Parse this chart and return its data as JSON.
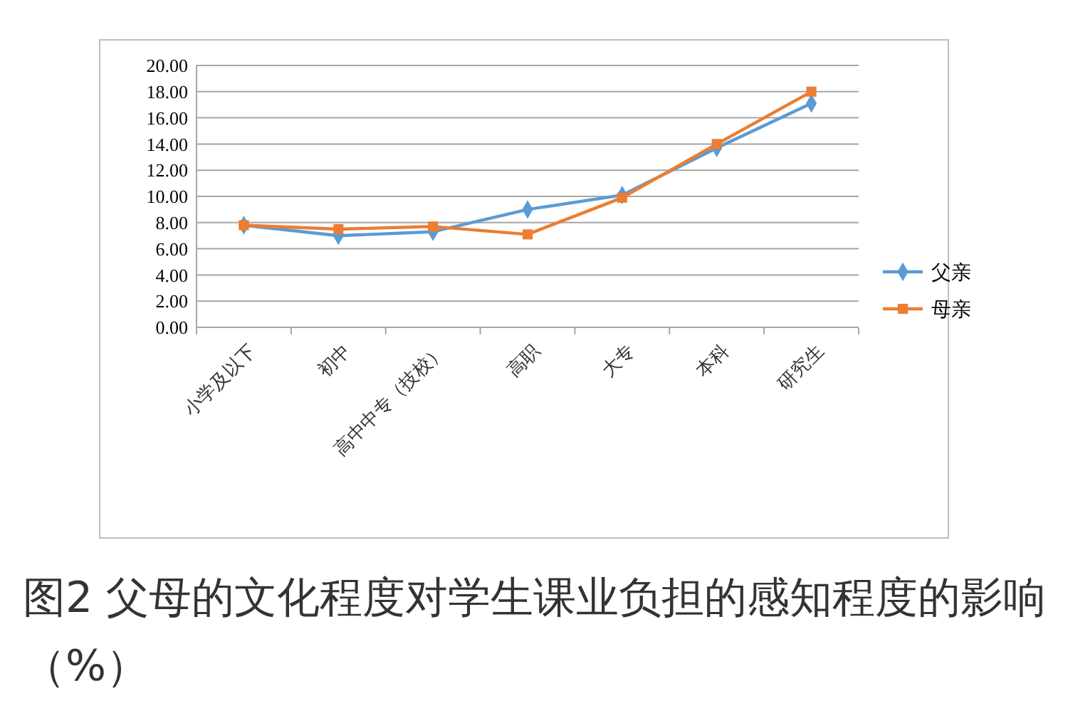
{
  "chart_data": {
    "type": "line",
    "title": "图2 父母的文化程度对学生课业负担的感知程度的影响（%）",
    "categories": [
      "小学及以下",
      "初中",
      "高中中专（技校）",
      "高职",
      "大专",
      "本科",
      "研究生"
    ],
    "series": [
      {
        "name": "父亲",
        "color": "#5b9bd5",
        "marker": "diamond",
        "values": [
          7.8,
          7.0,
          7.3,
          9.0,
          10.1,
          13.7,
          17.1
        ]
      },
      {
        "name": "母亲",
        "color": "#ed7d31",
        "marker": "square",
        "values": [
          7.8,
          7.5,
          7.7,
          7.1,
          9.9,
          14.0,
          18.0
        ]
      }
    ],
    "ylim": [
      0,
      20
    ],
    "yticks": [
      {
        "value": 0,
        "label": "0.00"
      },
      {
        "value": 2,
        "label": "2.00"
      },
      {
        "value": 4,
        "label": "4.00"
      },
      {
        "value": 6,
        "label": "6.00"
      },
      {
        "value": 8,
        "label": "8.00"
      },
      {
        "value": 10,
        "label": "10.00"
      },
      {
        "value": 12,
        "label": "12.00"
      },
      {
        "value": 14,
        "label": "14.00"
      },
      {
        "value": 16,
        "label": "16.00"
      },
      {
        "value": 18,
        "label": "18.00"
      },
      {
        "value": 20,
        "label": "20.00"
      }
    ],
    "grid": "y",
    "legend": "right",
    "line_style": "solid"
  }
}
